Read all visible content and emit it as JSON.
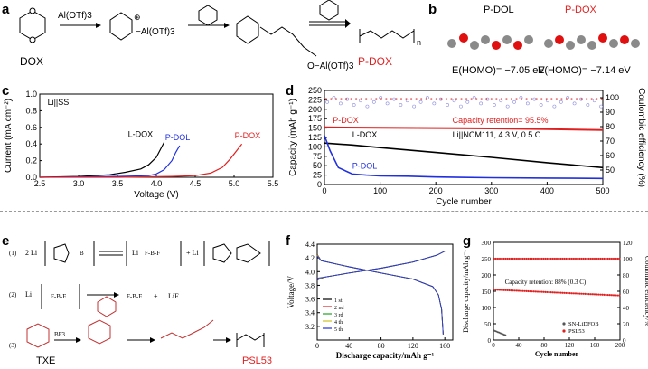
{
  "panels": {
    "a": {
      "label": "a"
    },
    "b": {
      "label": "b"
    },
    "c": {
      "label": "c"
    },
    "d": {
      "label": "d"
    },
    "e": {
      "label": "e"
    },
    "f": {
      "label": "f"
    },
    "g": {
      "label": "g"
    }
  },
  "scheme_a": {
    "start_label": "DOX",
    "reagent": "Al(OTf)3",
    "product_label": "P-DOX",
    "inter1_text": "−Al(OTf)3",
    "inter2_text": "O−Al(OTf)3",
    "polymer_n": "n"
  },
  "panel_b": {
    "left_title": "P-DOL",
    "right_title": "P-DOX",
    "left_homo": "E(HOMO)= −7.05 eV",
    "right_homo": "E(HOMO)= −7.14 eV",
    "right_title_color": "#e02020"
  },
  "chart_data": [
    {
      "id": "c",
      "type": "line",
      "xlabel": "Voltage (V)",
      "ylabel": "Current (mA cm⁻²)",
      "xlim": [
        2.5,
        5.5
      ],
      "ylim": [
        0,
        1.0
      ],
      "xticks": [
        "2.5",
        "3.0",
        "3.5",
        "4.0",
        "4.5",
        "5.0",
        "5.5"
      ],
      "yticks": [
        "0.0",
        "0.2",
        "0.4",
        "0.6",
        "0.8",
        "1.0"
      ],
      "annotation": "Li||SS",
      "series": [
        {
          "name": "L-DOX",
          "color": "#000000",
          "x": [
            2.5,
            3.0,
            3.4,
            3.6,
            3.8,
            3.9,
            4.0,
            4.05,
            4.1
          ],
          "y": [
            0.0,
            0.01,
            0.03,
            0.06,
            0.1,
            0.15,
            0.24,
            0.33,
            0.42
          ]
        },
        {
          "name": "P-DOL",
          "color": "#2030e0",
          "x": [
            2.5,
            3.5,
            3.9,
            4.0,
            4.1,
            4.2,
            4.25,
            4.3
          ],
          "y": [
            0.0,
            0.01,
            0.02,
            0.04,
            0.09,
            0.2,
            0.3,
            0.38
          ]
        },
        {
          "name": "P-DOX",
          "color": "#e02020",
          "x": [
            2.5,
            3.5,
            4.2,
            4.5,
            4.7,
            4.85,
            4.95,
            5.05,
            5.1
          ],
          "y": [
            0.0,
            0.0,
            0.01,
            0.02,
            0.05,
            0.12,
            0.22,
            0.34,
            0.4
          ]
        }
      ]
    },
    {
      "id": "d",
      "type": "scatter",
      "xlabel": "Cycle number",
      "ylabel": "Capacity (mAh g⁻¹)",
      "y2label": "Coulombic efficiency (%)",
      "xlim": [
        0,
        500
      ],
      "ylim": [
        0,
        250
      ],
      "y2lim": [
        40,
        105
      ],
      "xticks": [
        "0",
        "100",
        "200",
        "300",
        "400",
        "500"
      ],
      "yticks": [
        "0",
        "25",
        "50",
        "75",
        "100",
        "125",
        "150",
        "175",
        "200",
        "225",
        "250"
      ],
      "y2ticks": [
        "50",
        "60",
        "70",
        "80",
        "90",
        "100"
      ],
      "annotations": [
        "Capacity retention= 95.5%",
        "Li||NCM111, 4.3 V, 0.5 C"
      ],
      "series": [
        {
          "name": "P-DOX",
          "color": "#e02020",
          "x": [
            0,
            100,
            200,
            300,
            400,
            500
          ],
          "y": [
            152,
            151,
            150,
            149,
            147,
            145
          ]
        },
        {
          "name": "L-DOX",
          "color": "#000000",
          "x": [
            0,
            50,
            100,
            200,
            300,
            400,
            500
          ],
          "y": [
            110,
            105,
            98,
            85,
            72,
            58,
            45
          ]
        },
        {
          "name": "P-DOL",
          "color": "#2030e0",
          "x": [
            0,
            10,
            25,
            50,
            75,
            100,
            150,
            200,
            300,
            400,
            500
          ],
          "y": [
            130,
            90,
            45,
            28,
            25,
            23,
            22,
            20,
            18,
            17,
            16
          ]
        }
      ]
    },
    {
      "id": "f",
      "type": "line",
      "xlabel": "Discharge capacity/mAh g⁻¹",
      "ylabel": "Voltage/V",
      "xlim": [
        0,
        170
      ],
      "ylim": [
        3.0,
        4.4
      ],
      "xticks": [
        "0",
        "40",
        "80",
        "120",
        "160"
      ],
      "yticks": [
        "3.2",
        "3.4",
        "3.6",
        "3.8",
        "4.0",
        "4.2",
        "4.4"
      ],
      "series": [
        {
          "name": "1 st",
          "color": "#000000"
        },
        {
          "name": "2 nd",
          "color": "#e02020"
        },
        {
          "name": "3 rd",
          "color": "#20a020"
        },
        {
          "name": "4 th",
          "color": "#d0c020"
        },
        {
          "name": "5 th",
          "color": "#2030e0"
        }
      ]
    },
    {
      "id": "g",
      "type": "scatter",
      "xlabel": "Cycle number",
      "ylabel": "Discharge capacity/mAh g⁻¹",
      "y2label": "Coulombic efficiency/%",
      "xlim": [
        0,
        200
      ],
      "ylim": [
        0,
        300
      ],
      "y2lim": [
        0,
        120
      ],
      "xticks": [
        "0",
        "40",
        "80",
        "120",
        "160",
        "200"
      ],
      "yticks": [
        "0",
        "50",
        "100",
        "150",
        "200",
        "250",
        "300"
      ],
      "y2ticks": [
        "0",
        "20",
        "40",
        "60",
        "80",
        "100",
        "120"
      ],
      "annotation": "Capacity retention: 88% (0.3 C)",
      "series": [
        {
          "name": "SN-LiDFOB",
          "color": "#555555"
        },
        {
          "name": "PSL53",
          "color": "#e02020"
        }
      ]
    }
  ],
  "scheme_e": {
    "row1": "(1)",
    "row2": "(2)",
    "row3": "(3)",
    "li": "Li",
    "two_li": "2 Li",
    "lif": "LiF",
    "txe": "TXE",
    "psl53": "PSL53",
    "bf3": "BF3"
  }
}
